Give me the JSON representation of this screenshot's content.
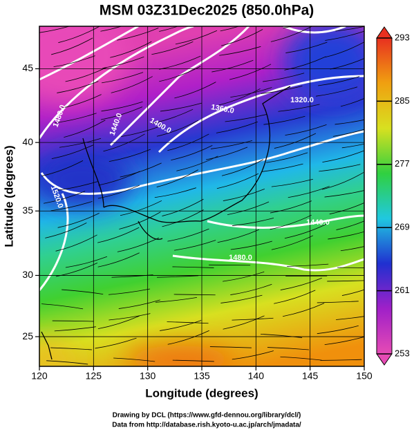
{
  "title": "MSM 03Z31Dec2025 (850.0hPa)",
  "x_label": "Longitude (degrees)",
  "y_label": "Latitude  (degrees)",
  "xlim": [
    120,
    150
  ],
  "xticks": [
    120,
    125,
    130,
    135,
    140,
    145,
    150
  ],
  "ylim": [
    22.5,
    47.7
  ],
  "yticks": [
    25,
    30,
    35,
    40,
    45
  ],
  "colorbar": {
    "lim": [
      253,
      293
    ],
    "ticks": [
      253,
      261,
      269,
      277,
      285,
      293
    ],
    "colors": [
      "#e64bb4",
      "#a020c8",
      "#2030d0",
      "#20c8e0",
      "#30d040",
      "#d8e020",
      "#f0a010",
      "#e83020"
    ]
  },
  "contour_labels": [
    "1320.0",
    "1360.0",
    "1400.0",
    "1440.0",
    "1480.0",
    "1520.0",
    "1440.0",
    "1480.0"
  ],
  "credits": [
    "Drawing by DCL (https://www.gfd-dennou.org/library/dcl/)",
    "Data from http://database.rish.kyoto-u.ac.jp/arch/jmadata/"
  ]
}
